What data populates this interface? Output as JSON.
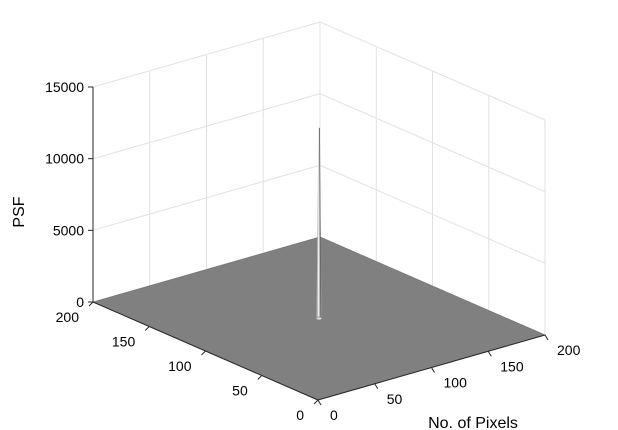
{
  "chart_data": {
    "type": "surface",
    "title": "",
    "zlabel": "PSF",
    "xlabel": "No. of Pixels",
    "ylabel": "",
    "xlim": [
      0,
      200
    ],
    "ylim": [
      0,
      200
    ],
    "zlim": [
      0,
      15000
    ],
    "x_ticks": [
      "0",
      "50",
      "100",
      "150",
      "200"
    ],
    "y_ticks": [
      "0",
      "50",
      "100",
      "150",
      "200"
    ],
    "z_ticks": [
      "0",
      "5000",
      "10000",
      "15000"
    ],
    "grid": true,
    "surface_color": "#808080",
    "peak": {
      "x": 100,
      "y": 100,
      "value": 13300
    },
    "baseline_value": 0
  }
}
